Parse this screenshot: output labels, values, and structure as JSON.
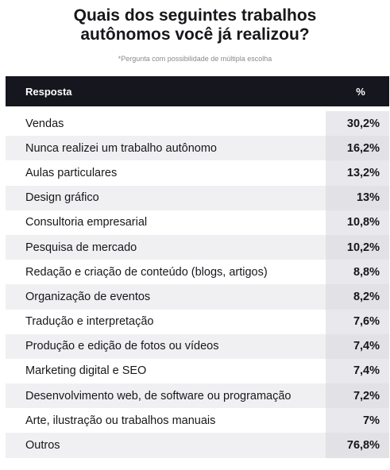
{
  "header": {
    "title_line1": "Quais dos seguintes trabalhos",
    "title_line2": "autônomos você já realizou?",
    "note": "*Pergunta com possibilidade de múltipla escolha"
  },
  "chart_data": {
    "type": "table",
    "columns": [
      "Resposta",
      "%"
    ],
    "rows": [
      {
        "label": "Vendas",
        "value_text": "30,2%",
        "value": 30.2
      },
      {
        "label": "Nunca realizei um trabalho autônomo",
        "value_text": "16,2%",
        "value": 16.2
      },
      {
        "label": "Aulas particulares",
        "value_text": "13,2%",
        "value": 13.2
      },
      {
        "label": "Design gráfico",
        "value_text": "13%",
        "value": 13
      },
      {
        "label": "Consultoria empresarial",
        "value_text": "10,8%",
        "value": 10.8
      },
      {
        "label": "Pesquisa de mercado",
        "value_text": "10,2%",
        "value": 10.2
      },
      {
        "label": "Redação e criação de conteúdo (blogs, artigos)",
        "value_text": "8,8%",
        "value": 8.8
      },
      {
        "label": "Organização de eventos",
        "value_text": "8,2%",
        "value": 8.2
      },
      {
        "label": "Tradução e interpretação",
        "value_text": "7,6%",
        "value": 7.6
      },
      {
        "label": "Produção e edição de fotos ou vídeos",
        "value_text": "7,4%",
        "value": 7.4
      },
      {
        "label": "Marketing digital e SEO",
        "value_text": "7,4%",
        "value": 7.4
      },
      {
        "label": "Desenvolvimento web, de software ou programação",
        "value_text": "7,2%",
        "value": 7.2
      },
      {
        "label": "Arte, ilustração ou trabalhos manuais",
        "value_text": "7%",
        "value": 7
      },
      {
        "label": "Outros",
        "value_text": "76,8%",
        "value": 76.8
      }
    ]
  },
  "colors": {
    "header_bg": "#15161e",
    "row_alt_bg": "#f0f0f3",
    "value_cell_bg": "#e9e9ed"
  }
}
